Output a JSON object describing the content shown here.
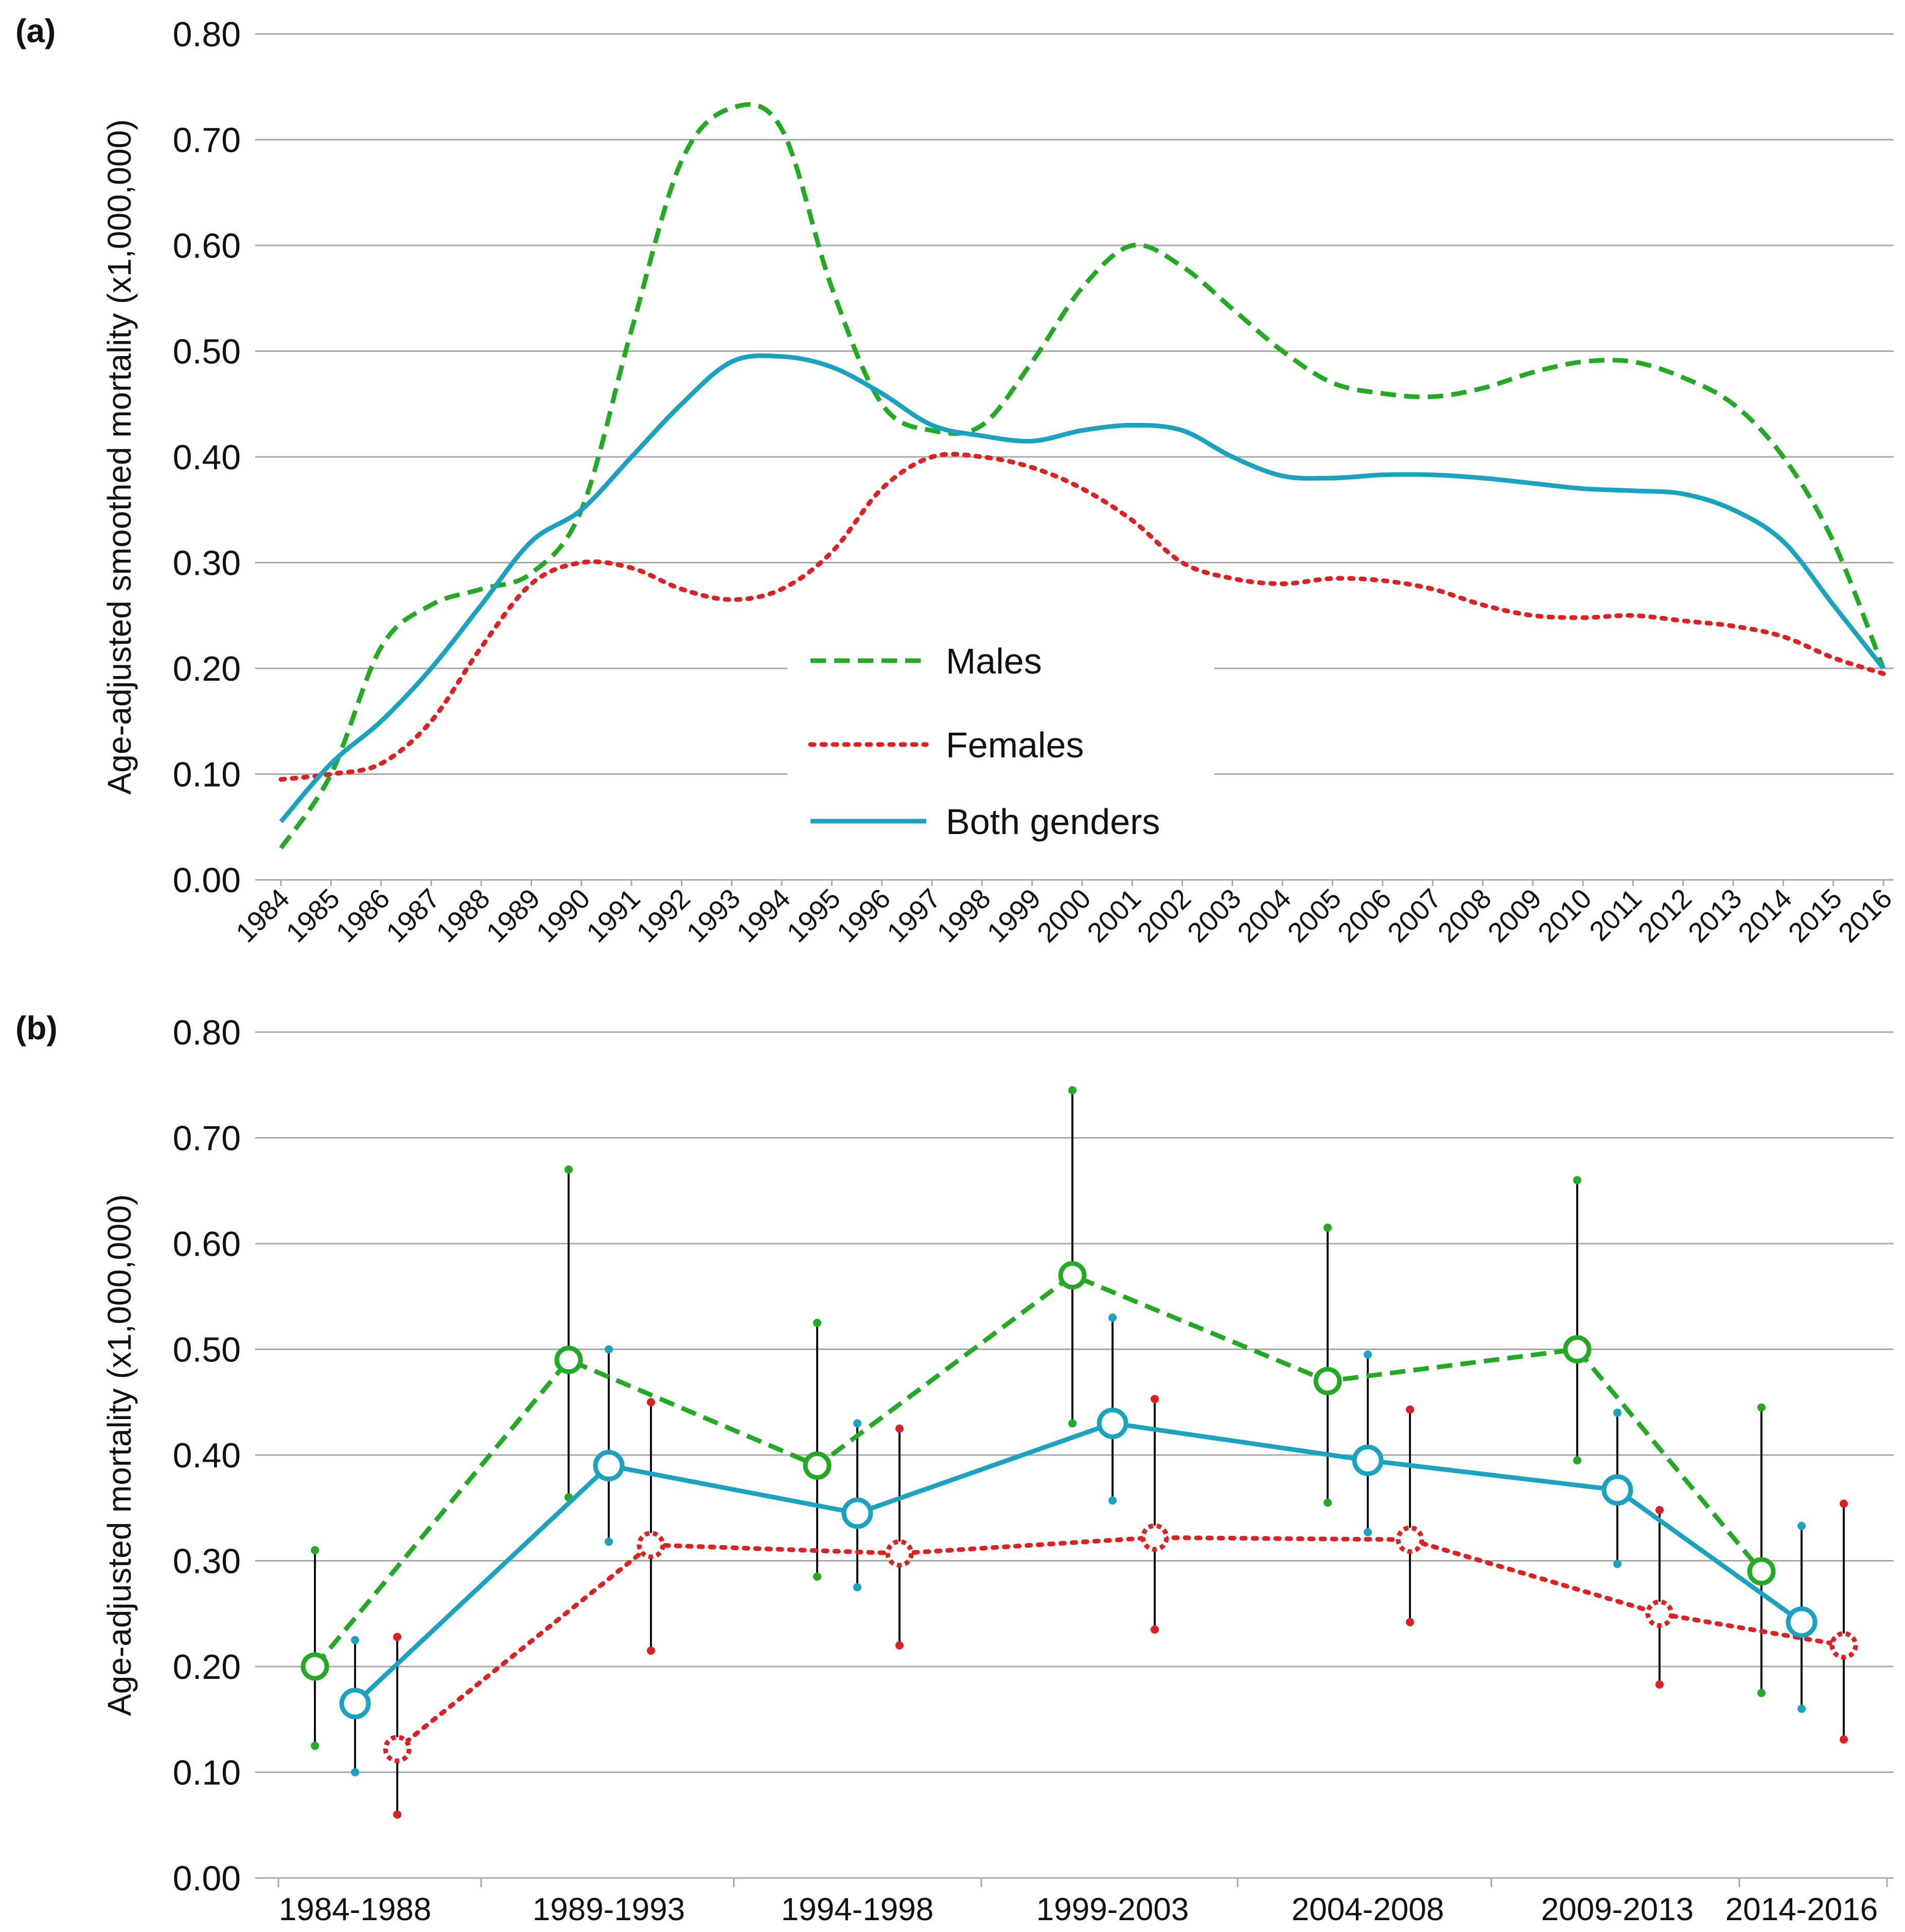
{
  "chart_data": [
    {
      "panel_label": "(a)",
      "type": "line",
      "ylabel": "Age-adjusted smoothed  mortality (x1,000,000)",
      "xlabel": "",
      "ylim": [
        0,
        0.8
      ],
      "yticks": [
        "0.00",
        "0.10",
        "0.20",
        "0.30",
        "0.40",
        "0.50",
        "0.60",
        "0.70",
        "0.80"
      ],
      "grid": true,
      "legend_position": "center",
      "x": [
        "1984",
        "1985",
        "1986",
        "1987",
        "1988",
        "1989",
        "1990",
        "1991",
        "1992",
        "1993",
        "1994",
        "1995",
        "1996",
        "1997",
        "1998",
        "1999",
        "2000",
        "2001",
        "2002",
        "2003",
        "2004",
        "2005",
        "2006",
        "2007",
        "2008",
        "2009",
        "2010",
        "2011",
        "2012",
        "2013",
        "2014",
        "2015",
        "2016"
      ],
      "series": [
        {
          "name": "Males",
          "color": "#22aa22",
          "style": "dashed",
          "values": [
            0.03,
            0.1,
            0.22,
            0.26,
            0.275,
            0.29,
            0.35,
            0.52,
            0.68,
            0.73,
            0.71,
            0.56,
            0.45,
            0.425,
            0.43,
            0.49,
            0.56,
            0.6,
            0.58,
            0.54,
            0.5,
            0.47,
            0.46,
            0.457,
            0.465,
            0.48,
            0.49,
            0.49,
            0.475,
            0.45,
            0.4,
            0.32,
            0.2
          ]
        },
        {
          "name": "Females",
          "color": "#e02020",
          "style": "dotted",
          "values": [
            0.095,
            0.1,
            0.11,
            0.15,
            0.22,
            0.28,
            0.3,
            0.295,
            0.275,
            0.265,
            0.275,
            0.31,
            0.37,
            0.4,
            0.4,
            0.39,
            0.37,
            0.34,
            0.3,
            0.285,
            0.28,
            0.285,
            0.283,
            0.275,
            0.26,
            0.25,
            0.248,
            0.25,
            0.245,
            0.24,
            0.23,
            0.21,
            0.195
          ]
        },
        {
          "name": "Both genders",
          "color": "#1aa3c0",
          "style": "solid",
          "values": [
            0.055,
            0.11,
            0.15,
            0.2,
            0.26,
            0.32,
            0.35,
            0.4,
            0.45,
            0.49,
            0.495,
            0.485,
            0.46,
            0.43,
            0.42,
            0.415,
            0.425,
            0.43,
            0.425,
            0.4,
            0.382,
            0.38,
            0.383,
            0.383,
            0.38,
            0.375,
            0.37,
            0.368,
            0.365,
            0.35,
            0.32,
            0.26,
            0.2
          ]
        }
      ]
    },
    {
      "panel_label": "(b)",
      "type": "line",
      "ylabel": "Age-adjusted mortality (x1,000,000)",
      "xlabel": "",
      "ylim": [
        0,
        0.8
      ],
      "yticks": [
        "0.00",
        "0.10",
        "0.20",
        "0.30",
        "0.40",
        "0.50",
        "0.60",
        "0.70",
        "0.80"
      ],
      "grid": true,
      "categories": [
        "1984-1988",
        "1989-1993",
        "1994-1998",
        "1999-2003",
        "2004-2008",
        "2009-2013",
        "2014-2016"
      ],
      "series": [
        {
          "name": "Males",
          "color": "#22aa22",
          "style": "dashed",
          "values": [
            0.2,
            0.49,
            0.39,
            0.57,
            0.47,
            0.5,
            0.29
          ],
          "lower": [
            0.125,
            0.36,
            0.285,
            0.43,
            0.355,
            0.395,
            0.175
          ],
          "upper": [
            0.31,
            0.67,
            0.525,
            0.745,
            0.615,
            0.66,
            0.445
          ]
        },
        {
          "name": "Both genders",
          "color": "#1aa3c0",
          "style": "solid",
          "values": [
            0.165,
            0.39,
            0.345,
            0.43,
            0.395,
            0.367,
            0.242
          ],
          "lower": [
            0.1,
            0.318,
            0.275,
            0.357,
            0.327,
            0.297,
            0.16
          ],
          "upper": [
            0.225,
            0.5,
            0.43,
            0.53,
            0.495,
            0.44,
            0.333
          ]
        },
        {
          "name": "Females",
          "color": "#e02020",
          "style": "dotted",
          "values": [
            0.122,
            0.315,
            0.307,
            0.322,
            0.32,
            0.25,
            0.22
          ],
          "lower": [
            0.06,
            0.215,
            0.22,
            0.235,
            0.242,
            0.183,
            0.131
          ],
          "upper": [
            0.228,
            0.45,
            0.425,
            0.453,
            0.443,
            0.348,
            0.354
          ]
        }
      ]
    }
  ],
  "legend": {
    "males": "Males",
    "females": "Females",
    "both": "Both genders"
  }
}
